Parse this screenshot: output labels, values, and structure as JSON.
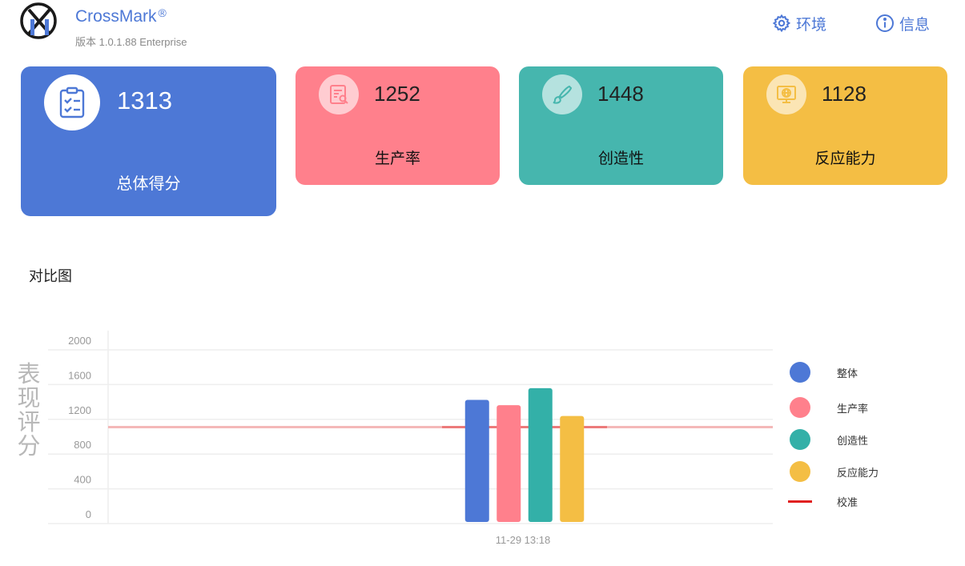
{
  "app": {
    "name": "CrossMark",
    "registered": "®",
    "version": "版本 1.0.1.88 Enterprise"
  },
  "nav": {
    "environment": "环境",
    "info": "信息"
  },
  "cards": {
    "total": {
      "value": "1313",
      "label": "总体得分",
      "color": "#4d78d6"
    },
    "productivity": {
      "value": "1252",
      "label": "生产率",
      "color": "#ff808c"
    },
    "creativity": {
      "value": "1448",
      "label": "创造性",
      "color": "#46b6ae"
    },
    "responsiveness": {
      "value": "1128",
      "label": "反应能力",
      "color": "#f4be44"
    }
  },
  "section": {
    "title": "对比图"
  },
  "chart_data": {
    "type": "bar",
    "ylabel": "表现评分",
    "ylim": [
      0,
      2000
    ],
    "yticks": [
      "0",
      "400",
      "800",
      "1200",
      "1600",
      "2000"
    ],
    "categories": [
      "11-29 13:18"
    ],
    "series": [
      {
        "name": "整体",
        "values": [
          1313
        ],
        "color": "#4d78d6"
      },
      {
        "name": "生产率",
        "values": [
          1252
        ],
        "color": "#ff808c"
      },
      {
        "name": "创造性",
        "values": [
          1448
        ],
        "color": "#33b0a8"
      },
      {
        "name": "反应能力",
        "values": [
          1128
        ],
        "color": "#f4be44"
      }
    ],
    "reference": {
      "name": "校准",
      "value": 1000,
      "color": "#e02020"
    },
    "legend_position": "right",
    "grid": true
  }
}
